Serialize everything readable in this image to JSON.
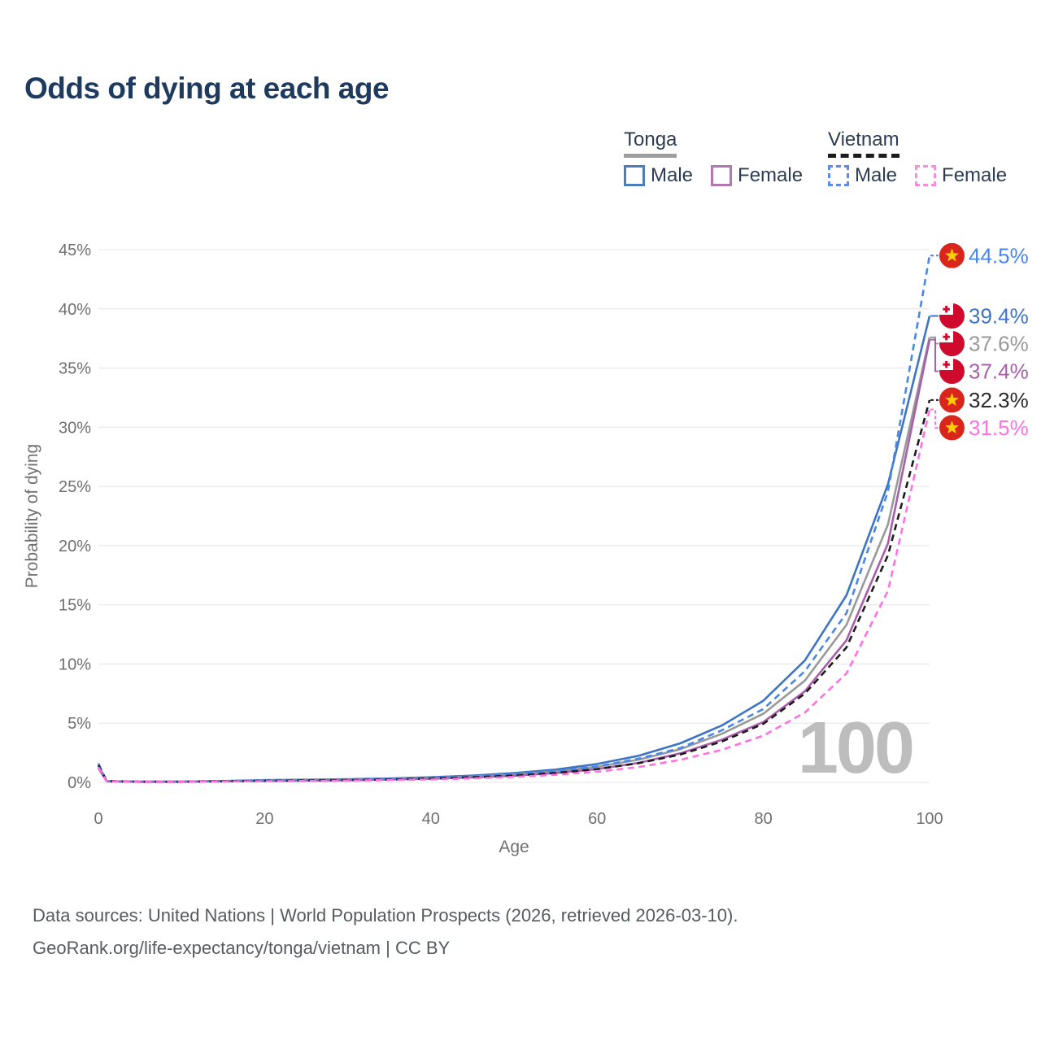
{
  "title": "Odds of dying at each age",
  "watermark_age": "100",
  "legend": {
    "groups": [
      {
        "label": "Tonga",
        "line_style": "solid",
        "underline_color": "#9e9e9e",
        "items": [
          {
            "label": "Male",
            "color": "#4a7ebb",
            "dash": false
          },
          {
            "label": "Female",
            "color": "#b577b3",
            "dash": false
          }
        ]
      },
      {
        "label": "Vietnam",
        "line_style": "dashed",
        "underline_color": "#1c1c1c",
        "items": [
          {
            "label": "Male",
            "color": "#5b8bef",
            "dash": true
          },
          {
            "label": "Female",
            "color": "#ff8ae6",
            "dash": true
          }
        ]
      }
    ]
  },
  "footer": {
    "line1": "Data sources: United Nations | World Population Prospects (2026, retrieved 2026-03-10).",
    "line2": "GeoRank.org/life-expectancy/tonga/vietnam | CC BY"
  },
  "chart_data": {
    "type": "line",
    "title": "Odds of dying at each age",
    "xlabel": "Age",
    "ylabel": "Probability of dying",
    "xlim": [
      0,
      100
    ],
    "ylim": [
      0,
      45
    ],
    "xticks": [
      0,
      20,
      40,
      60,
      80,
      100
    ],
    "yticks_percent": [
      0,
      5,
      10,
      15,
      20,
      25,
      30,
      35,
      40,
      45
    ],
    "grid": "horizontal",
    "legend_position": "top-right",
    "x": [
      0,
      1,
      5,
      10,
      15,
      20,
      25,
      30,
      35,
      40,
      45,
      50,
      55,
      60,
      65,
      70,
      75,
      80,
      85,
      90,
      95,
      100
    ],
    "series": [
      {
        "name": "Tonga Male",
        "country": "Tonga",
        "sex": "male",
        "line": "solid",
        "color": "#3d74c4",
        "flag": "tonga",
        "end_label": "39.4%",
        "values": [
          1.4,
          0.1,
          0.06,
          0.07,
          0.12,
          0.19,
          0.23,
          0.27,
          0.33,
          0.43,
          0.57,
          0.78,
          1.08,
          1.55,
          2.25,
          3.3,
          4.8,
          6.9,
          10.3,
          15.8,
          25.2,
          39.4
        ]
      },
      {
        "name": "Tonga Combined",
        "country": "Tonga",
        "sex": "combined",
        "line": "solid",
        "color": "#999999",
        "flag": "tonga",
        "end_label": "37.6%",
        "values": [
          1.3,
          0.09,
          0.05,
          0.06,
          0.1,
          0.16,
          0.19,
          0.23,
          0.28,
          0.37,
          0.49,
          0.66,
          0.92,
          1.32,
          1.92,
          2.8,
          4.1,
          5.8,
          8.6,
          13.3,
          21.8,
          37.6
        ]
      },
      {
        "name": "Tonga Female",
        "country": "Tonga",
        "sex": "female",
        "line": "solid",
        "color": "#a75fa9",
        "flag": "tonga",
        "end_label": "37.4%",
        "values": [
          1.2,
          0.08,
          0.05,
          0.05,
          0.08,
          0.12,
          0.15,
          0.18,
          0.24,
          0.31,
          0.41,
          0.56,
          0.78,
          1.12,
          1.65,
          2.45,
          3.6,
          5.1,
          7.7,
          12.0,
          20.2,
          37.4
        ]
      },
      {
        "name": "Vietnam Male",
        "country": "Vietnam",
        "sex": "male",
        "line": "dashed",
        "color": "#4a86e8",
        "flag": "vietnam",
        "end_label": "44.5%",
        "values": [
          1.6,
          0.11,
          0.06,
          0.06,
          0.1,
          0.16,
          0.19,
          0.22,
          0.28,
          0.37,
          0.5,
          0.68,
          0.93,
          1.35,
          2.0,
          2.9,
          4.4,
          6.2,
          9.4,
          14.3,
          24.6,
          44.5
        ]
      },
      {
        "name": "Vietnam Combined",
        "country": "Vietnam",
        "sex": "combined",
        "line": "dashed",
        "color": "#1c1c1c",
        "flag": "vietnam",
        "end_label": "32.3%",
        "values": [
          1.45,
          0.1,
          0.05,
          0.05,
          0.09,
          0.13,
          0.16,
          0.19,
          0.24,
          0.32,
          0.43,
          0.58,
          0.8,
          1.12,
          1.62,
          2.35,
          3.45,
          4.95,
          7.5,
          11.4,
          19.2,
          32.3
        ]
      },
      {
        "name": "Vietnam Female",
        "country": "Vietnam",
        "sex": "female",
        "line": "dashed",
        "color": "#ff70e2",
        "flag": "vietnam",
        "end_label": "31.5%",
        "values": [
          1.3,
          0.08,
          0.04,
          0.04,
          0.07,
          0.1,
          0.12,
          0.15,
          0.19,
          0.25,
          0.34,
          0.46,
          0.64,
          0.9,
          1.3,
          1.9,
          2.75,
          3.95,
          5.9,
          9.2,
          16.2,
          31.5
        ]
      }
    ]
  }
}
